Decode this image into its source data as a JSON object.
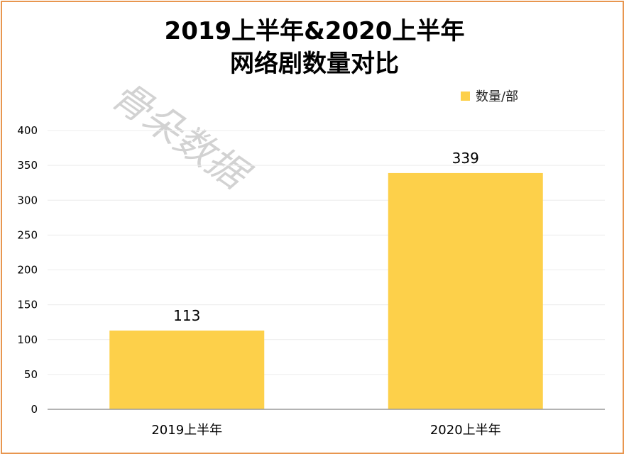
{
  "watermark": "骨朵数据",
  "chart_data": {
    "type": "bar",
    "title_lines": [
      "2019上半年&2020上半年",
      "网络剧数量对比"
    ],
    "categories": [
      "2019上半年",
      "2020上半年"
    ],
    "series": [
      {
        "name": "数量/部",
        "values": [
          113,
          339
        ],
        "color": "#fdd04a"
      }
    ],
    "ylim": [
      0,
      400
    ],
    "yticks": [
      0,
      50,
      100,
      150,
      200,
      250,
      300,
      350,
      400
    ],
    "grid": true,
    "legend_position": "top-right",
    "xlabel": "",
    "ylabel": ""
  }
}
